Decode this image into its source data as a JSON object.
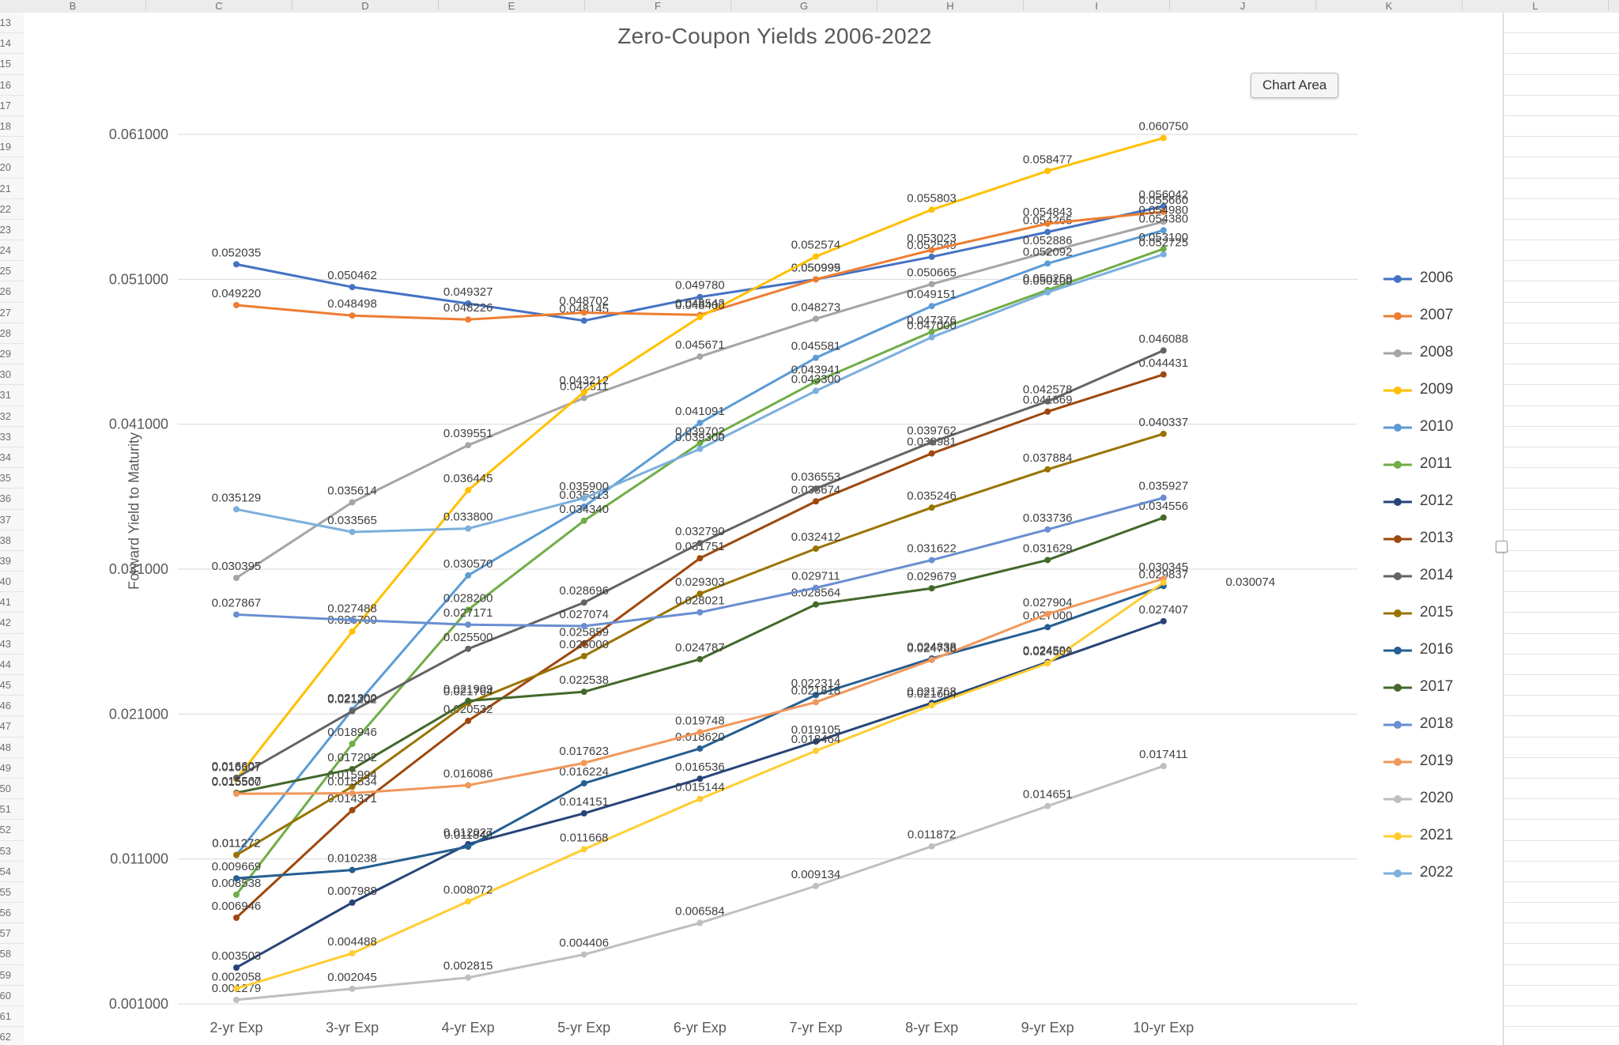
{
  "sheet": {
    "column_letters": [
      "B",
      "C",
      "D",
      "E",
      "F",
      "G",
      "H",
      "I",
      "J",
      "K",
      "L"
    ],
    "visible_row_start": 13,
    "visible_row_end": 62
  },
  "chart": {
    "title": "Zero-Coupon Yields 2006-2022",
    "tooltip": "Chart Area",
    "y_axis_title": "Forward Yield to Maturity",
    "y_tick_labels": [
      "0.001000",
      "0.011000",
      "0.021000",
      "0.031000",
      "0.041000",
      "0.051000",
      "0.061000"
    ]
  },
  "chart_data": {
    "type": "line",
    "title": "Zero-Coupon Yields 2006-2022",
    "xlabel": "",
    "ylabel": "Forward Yield to Maturity",
    "ylim": [
      0.001,
      0.061
    ],
    "y_tick_step": 0.01,
    "grid": true,
    "legend_position": "right",
    "data_labels": true,
    "label_decimals": 6,
    "categories": [
      "2-yr Exp",
      "3-yr Exp",
      "4-yr Exp",
      "5-yr Exp",
      "6-yr Exp",
      "7-yr Exp",
      "8-yr Exp",
      "9-yr Exp",
      "10-yr Exp"
    ],
    "series": [
      {
        "name": "2006",
        "color": "#4472C4",
        "values": [
          0.052035,
          0.050462,
          0.049327,
          0.048145,
          0.04978,
          0.050995,
          0.052549,
          0.054265,
          0.056042
        ]
      },
      {
        "name": "2007",
        "color": "#ED7D31",
        "values": [
          0.04922,
          0.048498,
          0.048226,
          0.048702,
          0.048542,
          0.050999,
          0.053023,
          0.054843,
          0.05566
        ]
      },
      {
        "name": "2008",
        "color": "#A5A5A5",
        "values": [
          0.030395,
          0.035614,
          0.039551,
          0.042811,
          0.045671,
          0.048273,
          0.050665,
          0.052886,
          0.05498
        ]
      },
      {
        "name": "2009",
        "color": "#FFC000",
        "values": [
          0.016507,
          0.0267,
          0.036445,
          0.043212,
          0.0484,
          0.052574,
          0.055803,
          0.058477,
          0.06075
        ]
      },
      {
        "name": "2010",
        "color": "#5B9BD5",
        "values": [
          0.011272,
          0.0213,
          0.03057,
          0.035313,
          0.041091,
          0.045581,
          0.049151,
          0.052092,
          0.05438
        ]
      },
      {
        "name": "2011",
        "color": "#70AD47",
        "values": [
          0.008538,
          0.018946,
          0.0282,
          0.03434,
          0.039702,
          0.043941,
          0.047376,
          0.050259,
          0.0531
        ]
      },
      {
        "name": "2012",
        "color": "#264478",
        "values": [
          0.003503,
          0.007988,
          0.012027,
          0.014151,
          0.016536,
          0.019105,
          0.021768,
          0.024591,
          0.027407
        ]
      },
      {
        "name": "2013",
        "color": "#9E480E",
        "values": [
          0.006946,
          0.014371,
          0.020532,
          0.025859,
          0.031751,
          0.035674,
          0.038981,
          0.041869,
          0.044431
        ]
      },
      {
        "name": "2014",
        "color": "#636363",
        "values": [
          0.016607,
          0.021202,
          0.0255,
          0.028696,
          0.03279,
          0.036553,
          0.039762,
          0.042578,
          0.046088
        ]
      },
      {
        "name": "2015",
        "color": "#997300",
        "values": [
          0.011272,
          0.015994,
          0.021764,
          0.025,
          0.029303,
          0.032412,
          0.035246,
          0.037884,
          0.040337
        ]
      },
      {
        "name": "2016",
        "color": "#255E91",
        "values": [
          0.009669,
          0.010238,
          0.011849,
          0.016224,
          0.01862,
          0.022314,
          0.024838,
          0.027,
          0.029837
        ]
      },
      {
        "name": "2017",
        "color": "#43682B",
        "values": [
          0.015567,
          0.017202,
          0.021909,
          0.022538,
          0.024787,
          0.028564,
          0.029679,
          0.031629,
          0.034556
        ]
      },
      {
        "name": "2018",
        "color": "#698ED0",
        "values": [
          0.027867,
          0.027488,
          0.027171,
          0.027074,
          0.028021,
          0.029711,
          0.031622,
          0.033736,
          0.035927
        ]
      },
      {
        "name": "2019",
        "color": "#F1975A",
        "values": [
          0.0155,
          0.015534,
          0.016086,
          0.017623,
          0.019748,
          0.021818,
          0.024738,
          0.027904,
          0.030345
        ]
      },
      {
        "name": "2020",
        "color": "#BFBFBF",
        "values": [
          0.001279,
          0.002045,
          0.002815,
          0.004406,
          0.006584,
          0.009134,
          0.011872,
          0.014651,
          0.017411
        ]
      },
      {
        "name": "2021",
        "color": "#FFCD33",
        "values": [
          0.002058,
          0.004488,
          0.008072,
          0.011668,
          0.015144,
          0.018464,
          0.021604,
          0.024509,
          0.030074
        ],
        "last_label_dx": 110,
        "last_label_dy": 14
      },
      {
        "name": "2022",
        "color": "#7CAFDD",
        "values": [
          0.035129,
          0.033565,
          0.0338,
          0.0359,
          0.0393,
          0.0433,
          0.047,
          0.0501,
          0.052725
        ]
      }
    ]
  }
}
